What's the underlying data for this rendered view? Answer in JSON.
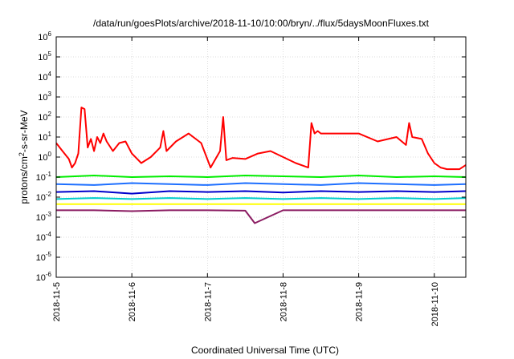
{
  "chart_data": {
    "type": "line",
    "title": "/data/run/goesPlots/archive/2018-11-10/10:00/bryn/../flux/5daysMoonFluxes.txt",
    "xlabel": "Coordinated Universal Time (UTC)",
    "ylabel": {
      "prefix": "protons/cm",
      "sup": "2",
      "suffix": "-s-sr-MeV"
    },
    "y_scale": "log",
    "ylim": [
      1e-06,
      1000000.0
    ],
    "y_ticks": [
      {
        "value": 1e-06,
        "base": "10",
        "exp": "-6"
      },
      {
        "value": 1e-05,
        "base": "10",
        "exp": "-5"
      },
      {
        "value": 0.0001,
        "base": "10",
        "exp": "-4"
      },
      {
        "value": 0.001,
        "base": "10",
        "exp": "-3"
      },
      {
        "value": 0.01,
        "base": "10",
        "exp": "-2"
      },
      {
        "value": 0.1,
        "base": "10",
        "exp": "-1"
      },
      {
        "value": 1,
        "base": "10",
        "exp": "0"
      },
      {
        "value": 10,
        "base": "10",
        "exp": "1"
      },
      {
        "value": 100,
        "base": "10",
        "exp": "2"
      },
      {
        "value": 1000,
        "base": "10",
        "exp": "3"
      },
      {
        "value": 10000,
        "base": "10",
        "exp": "4"
      },
      {
        "value": 100000,
        "base": "10",
        "exp": "5"
      },
      {
        "value": 1000000,
        "base": "10",
        "exp": "6"
      }
    ],
    "xlim": [
      "2018-11-05T00:00",
      "2018-11-10T10:00"
    ],
    "x_ticks": [
      "2018-11-5",
      "2018-11-6",
      "2018-11-7",
      "2018-11-8",
      "2018-11-9",
      "2018-11-10"
    ],
    "x_tick_values": [
      "2018-11-05T00:00",
      "2018-11-06T00:00",
      "2018-11-07T00:00",
      "2018-11-08T00:00",
      "2018-11-09T00:00",
      "2018-11-10T00:00"
    ],
    "grid": true,
    "series": [
      {
        "color": "#ff0000",
        "x": [
          "2018-11-05T00:00",
          "2018-11-05T02:00",
          "2018-11-05T04:00",
          "2018-11-05T05:00",
          "2018-11-05T06:00",
          "2018-11-05T07:00",
          "2018-11-05T08:00",
          "2018-11-05T09:00",
          "2018-11-05T10:00",
          "2018-11-05T11:00",
          "2018-11-05T12:00",
          "2018-11-05T13:00",
          "2018-11-05T14:00",
          "2018-11-05T15:00",
          "2018-11-05T16:00",
          "2018-11-05T18:00",
          "2018-11-05T20:00",
          "2018-11-05T22:00",
          "2018-11-06T00:00",
          "2018-11-06T03:00",
          "2018-11-06T06:00",
          "2018-11-06T09:00",
          "2018-11-06T10:00",
          "2018-11-06T11:00",
          "2018-11-06T14:00",
          "2018-11-06T18:00",
          "2018-11-06T22:00",
          "2018-11-07T01:00",
          "2018-11-07T04:00",
          "2018-11-07T05:00",
          "2018-11-07T06:00",
          "2018-11-07T07:00",
          "2018-11-07T08:00",
          "2018-11-07T12:00",
          "2018-11-07T16:00",
          "2018-11-07T20:00",
          "2018-11-08T00:00",
          "2018-11-08T04:00",
          "2018-11-08T08:00",
          "2018-11-08T09:00",
          "2018-11-08T10:00",
          "2018-11-08T11:00",
          "2018-11-08T12:00",
          "2018-11-08T18:00",
          "2018-11-09T00:00",
          "2018-11-09T06:00",
          "2018-11-09T12:00",
          "2018-11-09T15:00",
          "2018-11-09T16:00",
          "2018-11-09T17:00",
          "2018-11-09T20:00",
          "2018-11-09T22:00",
          "2018-11-10T00:00",
          "2018-11-10T02:00",
          "2018-11-10T04:00",
          "2018-11-10T06:00",
          "2018-11-10T08:00",
          "2018-11-10T10:00"
        ],
        "values": [
          5,
          2,
          0.8,
          0.3,
          0.5,
          1.5,
          300,
          250,
          3,
          8,
          2,
          10,
          5,
          15,
          6,
          2,
          5,
          6,
          1.5,
          0.5,
          1,
          3,
          20,
          2,
          6,
          15,
          5,
          0.3,
          2,
          100,
          0.7,
          0.8,
          0.9,
          0.8,
          1.5,
          2,
          1,
          0.5,
          0.3,
          50,
          15,
          20,
          15,
          15,
          15,
          6,
          10,
          4,
          50,
          10,
          8,
          1.5,
          0.5,
          0.3,
          0.25,
          0.25,
          0.25,
          0.4
        ]
      },
      {
        "color": "#00ee00",
        "x": [
          "2018-11-05T00:00",
          "2018-11-05T12:00",
          "2018-11-06T00:00",
          "2018-11-06T12:00",
          "2018-11-07T00:00",
          "2018-11-07T12:00",
          "2018-11-08T00:00",
          "2018-11-08T12:00",
          "2018-11-09T00:00",
          "2018-11-09T12:00",
          "2018-11-10T00:00",
          "2018-11-10T10:00"
        ],
        "values": [
          0.1,
          0.12,
          0.1,
          0.11,
          0.1,
          0.12,
          0.11,
          0.1,
          0.12,
          0.1,
          0.11,
          0.1
        ]
      },
      {
        "color": "#1e6fff",
        "x": [
          "2018-11-05T00:00",
          "2018-11-05T12:00",
          "2018-11-06T00:00",
          "2018-11-06T12:00",
          "2018-11-07T00:00",
          "2018-11-07T12:00",
          "2018-11-08T00:00",
          "2018-11-08T12:00",
          "2018-11-09T00:00",
          "2018-11-09T12:00",
          "2018-11-10T00:00",
          "2018-11-10T10:00"
        ],
        "values": [
          0.045,
          0.04,
          0.05,
          0.045,
          0.04,
          0.05,
          0.045,
          0.04,
          0.05,
          0.045,
          0.04,
          0.045
        ]
      },
      {
        "color": "#0000cc",
        "x": [
          "2018-11-05T00:00",
          "2018-11-05T12:00",
          "2018-11-06T00:00",
          "2018-11-06T12:00",
          "2018-11-07T00:00",
          "2018-11-07T12:00",
          "2018-11-08T00:00",
          "2018-11-08T12:00",
          "2018-11-09T00:00",
          "2018-11-09T12:00",
          "2018-11-10T00:00",
          "2018-11-10T10:00"
        ],
        "values": [
          0.018,
          0.02,
          0.015,
          0.02,
          0.018,
          0.02,
          0.017,
          0.02,
          0.018,
          0.02,
          0.018,
          0.02
        ]
      },
      {
        "color": "#00cccc",
        "x": [
          "2018-11-05T00:00",
          "2018-11-05T12:00",
          "2018-11-06T00:00",
          "2018-11-06T12:00",
          "2018-11-07T00:00",
          "2018-11-07T12:00",
          "2018-11-08T00:00",
          "2018-11-08T12:00",
          "2018-11-09T00:00",
          "2018-11-09T12:00",
          "2018-11-10T00:00",
          "2018-11-10T10:00"
        ],
        "values": [
          0.008,
          0.009,
          0.008,
          0.009,
          0.008,
          0.009,
          0.008,
          0.009,
          0.008,
          0.009,
          0.008,
          0.009
        ]
      },
      {
        "color": "#ffff00",
        "x": [
          "2018-11-05T00:00",
          "2018-11-05T12:00",
          "2018-11-06T00:00",
          "2018-11-06T12:00",
          "2018-11-07T00:00",
          "2018-11-07T12:00",
          "2018-11-08T00:00",
          "2018-11-08T12:00",
          "2018-11-09T00:00",
          "2018-11-09T12:00",
          "2018-11-10T00:00",
          "2018-11-10T10:00"
        ],
        "values": [
          0.0045,
          0.0045,
          0.0045,
          0.0045,
          0.0045,
          0.0045,
          0.0045,
          0.0045,
          0.0045,
          0.0045,
          0.0045,
          0.0045
        ]
      },
      {
        "color": "#8b1c62",
        "x": [
          "2018-11-05T00:00",
          "2018-11-05T12:00",
          "2018-11-06T00:00",
          "2018-11-06T12:00",
          "2018-11-07T00:00",
          "2018-11-07T12:00",
          "2018-11-07T15:00",
          "2018-11-08T00:00",
          "2018-11-08T12:00",
          "2018-11-09T00:00",
          "2018-11-09T12:00",
          "2018-11-10T00:00",
          "2018-11-10T10:00"
        ],
        "values": [
          0.0022,
          0.0022,
          0.002,
          0.0022,
          0.0022,
          0.0021,
          0.0005,
          0.0022,
          0.0022,
          0.0022,
          0.0022,
          0.0022,
          0.0022
        ]
      }
    ]
  }
}
